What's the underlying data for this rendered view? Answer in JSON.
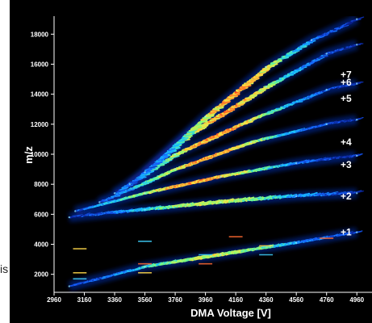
{
  "chart_data": {
    "type": "heatmap",
    "title": "",
    "xlabel": "DMA Voltage [V]",
    "ylabel": "m/z",
    "xlim": [
      2960,
      5060
    ],
    "ylim": [
      800,
      19200
    ],
    "x_ticks": [
      2960,
      3160,
      3360,
      3560,
      3760,
      3960,
      4160,
      4360,
      4560,
      4760,
      4960
    ],
    "y_ticks": [
      2000,
      4000,
      6000,
      8000,
      10000,
      12000,
      14000,
      16000,
      18000
    ],
    "grid": false,
    "colormap": [
      "#000010",
      "#0a1f8f",
      "#1560ff",
      "#18c8ff",
      "#7dff7a",
      "#ffe040",
      "#ff5020"
    ],
    "series": [
      {
        "name": "+1",
        "x": [
          3060,
          3560,
          4060,
          4560,
          4960
        ],
        "y": [
          1200,
          2500,
          3300,
          4100,
          4800
        ]
      },
      {
        "name": "+2",
        "x": [
          3060,
          3560,
          4060,
          4560,
          4960
        ],
        "y": [
          5800,
          6300,
          6800,
          7200,
          7400
        ]
      },
      {
        "name": "+3",
        "x": [
          3100,
          3560,
          4060,
          4560,
          4960
        ],
        "y": [
          6200,
          7400,
          8500,
          9400,
          9900
        ]
      },
      {
        "name": "+4",
        "x": [
          3260,
          3760,
          4260,
          4760,
          4960
        ],
        "y": [
          6800,
          9000,
          10800,
          12000,
          12300
        ]
      },
      {
        "name": "+5",
        "x": [
          3360,
          3760,
          4260,
          4760,
          4960
        ],
        "y": [
          7400,
          10000,
          12300,
          14300,
          14700
        ]
      },
      {
        "name": "+6",
        "x": [
          3460,
          3860,
          4360,
          4760,
          4960
        ],
        "y": [
          8000,
          11400,
          14500,
          16700,
          17300
        ]
      },
      {
        "name": "+7",
        "x": [
          3560,
          3960,
          4360,
          4660,
          4960
        ],
        "y": [
          8800,
          12500,
          15800,
          17600,
          19000
        ]
      }
    ],
    "charge_labels": [
      "+1",
      "+2",
      "+3",
      "+4",
      "+5",
      "+6",
      "+7"
    ],
    "charge_label_mz": [
      4800,
      7200,
      9300,
      10800,
      13700,
      14800,
      15300
    ]
  },
  "edge_text": "is"
}
